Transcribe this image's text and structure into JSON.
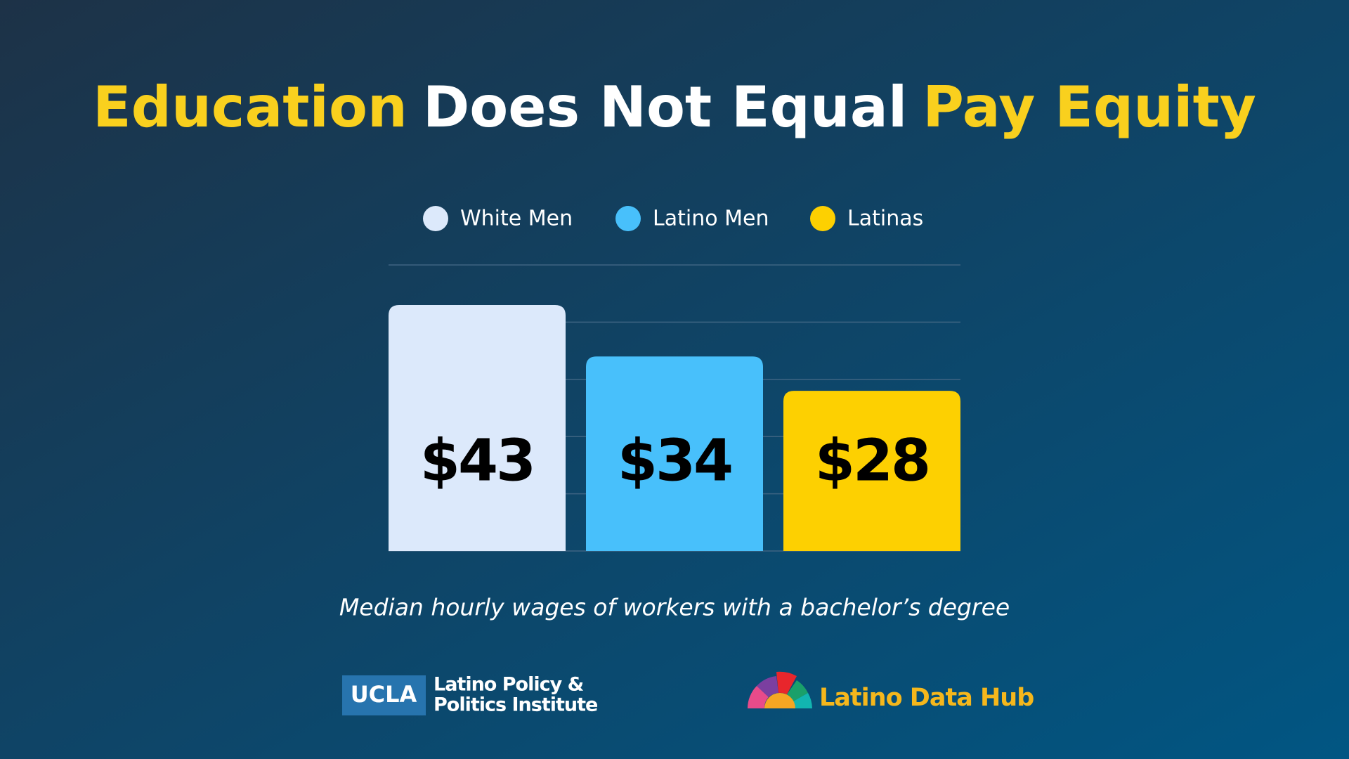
{
  "chart_data": {
    "type": "bar",
    "title": [
      {
        "text": "Education",
        "color": "#f9d01e"
      },
      {
        "text": "Does Not Equal",
        "color": "#ffffff"
      },
      {
        "text": "Pay Equity",
        "color": "#f9d01e"
      }
    ],
    "categories": [
      "White Men",
      "Latino Men",
      "Latinas"
    ],
    "values": [
      43,
      34,
      28
    ],
    "value_labels": [
      "$43",
      "$34",
      "$28"
    ],
    "colors": [
      "#dce9fb",
      "#48c0fb",
      "#fdd001"
    ],
    "ylim": [
      0,
      50
    ],
    "yticks": [
      0,
      10,
      20,
      30,
      40,
      50
    ],
    "grid": true,
    "caption": "Median hourly wages of workers with a bachelor’s degree"
  },
  "footer": {
    "ucla_badge": "UCLA",
    "institute_lines": [
      "Latino Policy &",
      "Politics Institute"
    ],
    "hub_name": "Latino Data Hub"
  }
}
